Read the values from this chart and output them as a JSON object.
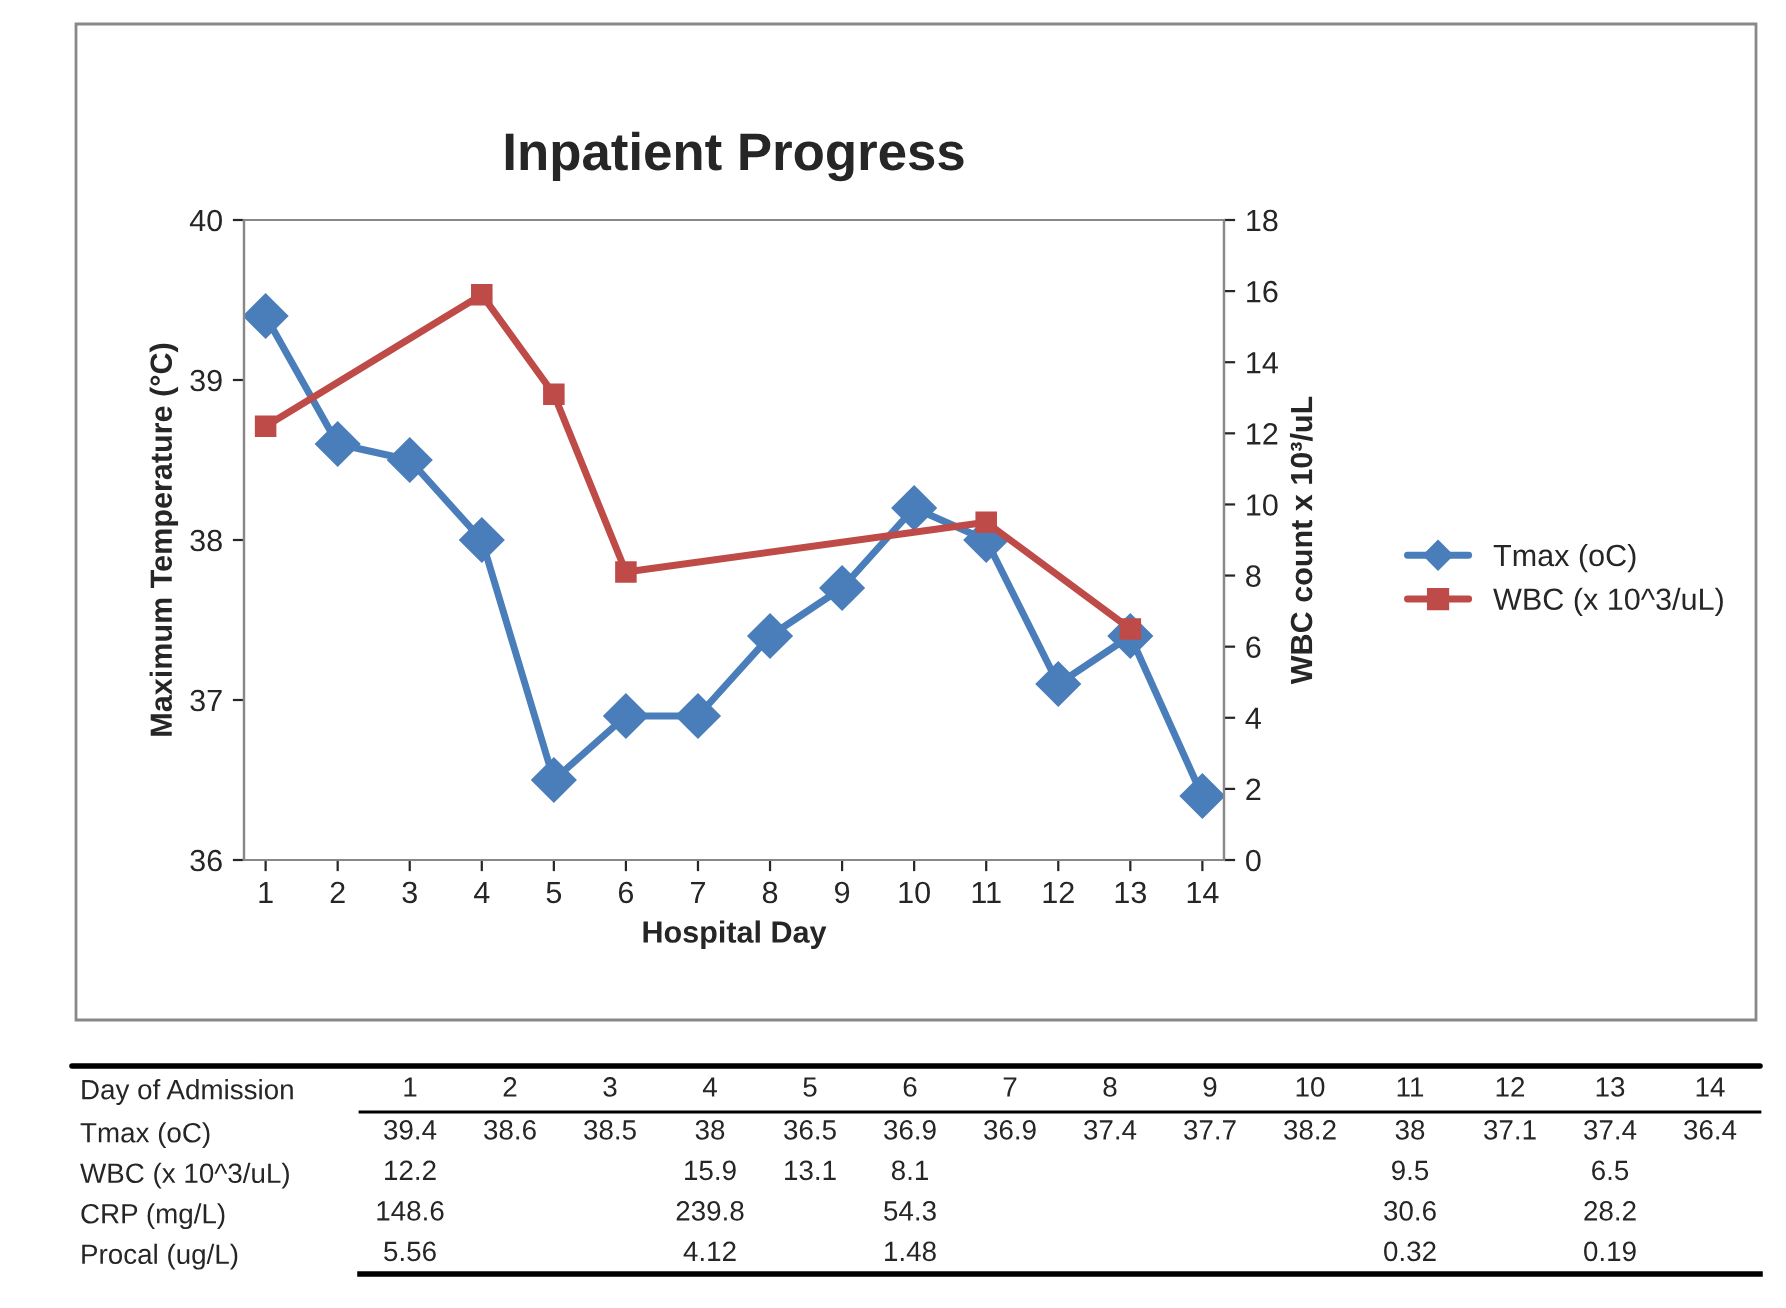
{
  "chart_data": [
    {
      "type": "line",
      "title": "Inpatient Progress",
      "xlabel": "Hospital Day",
      "ylabel": "Maximum Temperature (°C)",
      "y2label": "WBC count x 10³/uL",
      "categories": [
        "1",
        "2",
        "3",
        "4",
        "5",
        "6",
        "7",
        "8",
        "9",
        "10",
        "11",
        "12",
        "13",
        "14"
      ],
      "ylim": [
        36,
        40
      ],
      "yticks": [
        36,
        37,
        38,
        39,
        40
      ],
      "y2lim": [
        0,
        18
      ],
      "y2ticks": [
        0,
        2,
        4,
        6,
        8,
        10,
        12,
        14,
        16,
        18
      ],
      "legend": "right",
      "line_style": "solid",
      "series": [
        {
          "name": "Tmax (oC)",
          "color": "#4a7ebb",
          "marker": "diamond",
          "values": [
            39.4,
            38.6,
            38.5,
            38,
            36.5,
            36.9,
            36.9,
            37.4,
            37.7,
            38.2,
            38,
            37.1,
            37.4,
            36.4
          ]
        },
        {
          "name": "WBC (x 10^3/uL)",
          "color": "#be4b48",
          "marker": "square",
          "axis": "y2",
          "values": [
            12.2,
            null,
            null,
            15.9,
            13.1,
            8.1,
            null,
            null,
            null,
            null,
            9.5,
            null,
            6.5,
            null
          ]
        }
      ]
    },
    {
      "type": "heatmap",
      "xlabel": "Day of Admission",
      "data_labels": true,
      "categories": [
        "1",
        "2",
        "3",
        "4",
        "5",
        "6",
        "7",
        "8",
        "9",
        "10",
        "11",
        "12",
        "13",
        "14"
      ],
      "y_categories": [
        "Tmax (oC)",
        "WBC (x 10^3/uL)",
        "CRP (mg/L)",
        "Procal (ug/L)"
      ],
      "cells": [
        [
          39.4,
          38.6,
          38.5,
          38,
          36.5,
          36.9,
          36.9,
          37.4,
          37.7,
          38.2,
          38,
          37.1,
          37.4,
          36.4
        ],
        [
          12.2,
          null,
          null,
          15.9,
          13.1,
          8.1,
          null,
          null,
          null,
          null,
          9.5,
          null,
          6.5,
          null
        ],
        [
          148.6,
          null,
          null,
          239.8,
          null,
          54.3,
          null,
          null,
          null,
          null,
          30.6,
          null,
          28.2,
          null
        ],
        [
          5.56,
          null,
          null,
          4.12,
          null,
          1.48,
          null,
          null,
          null,
          null,
          0.32,
          null,
          0.19,
          null
        ]
      ]
    }
  ]
}
